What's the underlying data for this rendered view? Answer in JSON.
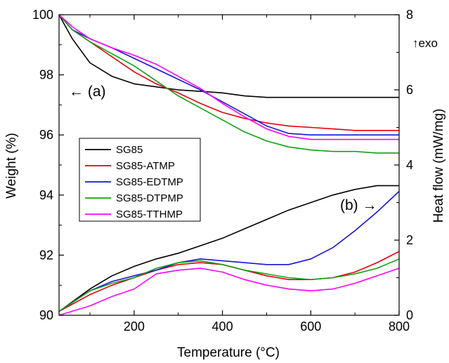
{
  "chart_data": {
    "type": "line",
    "xlabel": "Temperature (°C)",
    "ylabel_left": "Weight (%)",
    "ylabel_right": "Heat flow (mW/mg)",
    "xlim": [
      30,
      800
    ],
    "ylim_left": [
      90,
      100
    ],
    "ylim_right": [
      0,
      8
    ],
    "x_ticks": [
      200,
      400,
      600,
      800
    ],
    "y_left_ticks": [
      90,
      92,
      94,
      96,
      98,
      100
    ],
    "y_right_ticks": [
      0,
      2,
      4,
      6,
      8
    ],
    "grid": false,
    "legend_position": "left-center",
    "annotations": {
      "exo": "↑exo",
      "a": "← (a)",
      "b": "(b) →"
    },
    "colors": {
      "SG85": "#000000",
      "SG85-ATMP": "#e8000b",
      "SG85-EDTMP": "#1515d8",
      "SG85-DTPMP": "#12a012",
      "SG85-TTHMP": "#ff00ff"
    },
    "tga_series": [
      {
        "name": "SG85",
        "axis": "left",
        "x": [
          30,
          60,
          100,
          150,
          200,
          250,
          300,
          350,
          400,
          450,
          500,
          550,
          600,
          650,
          700,
          750,
          800
        ],
        "y": [
          100,
          99.2,
          98.4,
          97.95,
          97.7,
          97.6,
          97.5,
          97.45,
          97.4,
          97.3,
          97.25,
          97.25,
          97.25,
          97.25,
          97.25,
          97.25,
          97.25
        ]
      },
      {
        "name": "SG85-ATMP",
        "axis": "left",
        "x": [
          30,
          60,
          100,
          150,
          200,
          250,
          300,
          350,
          400,
          450,
          500,
          550,
          600,
          650,
          700,
          750,
          800
        ],
        "y": [
          100,
          99.5,
          99.1,
          98.6,
          98.1,
          97.7,
          97.4,
          97.05,
          96.75,
          96.55,
          96.4,
          96.3,
          96.25,
          96.2,
          96.15,
          96.15,
          96.15
        ]
      },
      {
        "name": "SG85-EDTMP",
        "axis": "left",
        "x": [
          30,
          60,
          100,
          150,
          200,
          250,
          300,
          350,
          400,
          450,
          500,
          550,
          600,
          650,
          700,
          750,
          800
        ],
        "y": [
          100,
          99.5,
          99.2,
          98.9,
          98.55,
          98.2,
          97.85,
          97.5,
          97.1,
          96.7,
          96.3,
          96.05,
          96.0,
          96.0,
          96.0,
          96.0,
          96.0
        ]
      },
      {
        "name": "SG85-DTPMP",
        "axis": "left",
        "x": [
          30,
          60,
          100,
          150,
          200,
          250,
          300,
          350,
          400,
          450,
          500,
          550,
          600,
          650,
          700,
          750,
          800
        ],
        "y": [
          100,
          99.5,
          99.1,
          98.7,
          98.3,
          97.8,
          97.3,
          96.9,
          96.5,
          96.1,
          95.8,
          95.6,
          95.5,
          95.45,
          95.45,
          95.4,
          95.4
        ]
      },
      {
        "name": "SG85-TTHMP",
        "axis": "left",
        "x": [
          30,
          60,
          100,
          150,
          200,
          250,
          300,
          350,
          400,
          450,
          500,
          550,
          600,
          650,
          700,
          750,
          800
        ],
        "y": [
          100,
          99.6,
          99.2,
          98.9,
          98.65,
          98.35,
          97.95,
          97.55,
          97.05,
          96.6,
          96.2,
          95.95,
          95.85,
          95.85,
          95.85,
          95.85,
          95.85
        ]
      }
    ],
    "dsc_series": [
      {
        "name": "SG85",
        "axis": "right",
        "x": [
          30,
          100,
          150,
          200,
          250,
          300,
          350,
          400,
          450,
          500,
          550,
          600,
          650,
          700,
          750,
          800
        ],
        "y": [
          0.1,
          0.7,
          1.05,
          1.3,
          1.5,
          1.65,
          1.85,
          2.05,
          2.3,
          2.55,
          2.8,
          3.0,
          3.2,
          3.35,
          3.45,
          3.45
        ]
      },
      {
        "name": "SG85-ATMP",
        "axis": "right",
        "x": [
          30,
          100,
          150,
          200,
          250,
          300,
          350,
          400,
          450,
          500,
          550,
          600,
          650,
          700,
          750,
          800
        ],
        "y": [
          0.1,
          0.55,
          0.8,
          1.0,
          1.2,
          1.35,
          1.4,
          1.35,
          1.2,
          1.05,
          0.95,
          0.95,
          1.0,
          1.15,
          1.4,
          1.7
        ]
      },
      {
        "name": "SG85-EDTMP",
        "axis": "right",
        "x": [
          30,
          100,
          150,
          200,
          250,
          300,
          350,
          400,
          450,
          500,
          550,
          600,
          650,
          700,
          750,
          800
        ],
        "y": [
          0.1,
          0.65,
          0.9,
          1.05,
          1.2,
          1.4,
          1.5,
          1.45,
          1.4,
          1.35,
          1.35,
          1.5,
          1.8,
          2.25,
          2.75,
          3.3
        ]
      },
      {
        "name": "SG85-DTPMP",
        "axis": "right",
        "x": [
          30,
          100,
          150,
          200,
          250,
          300,
          350,
          400,
          450,
          500,
          550,
          600,
          650,
          700,
          750,
          800
        ],
        "y": [
          0.1,
          0.65,
          0.85,
          1.0,
          1.25,
          1.4,
          1.45,
          1.35,
          1.2,
          1.1,
          1.0,
          0.95,
          1.0,
          1.1,
          1.25,
          1.5
        ]
      },
      {
        "name": "SG85-TTHMP",
        "axis": "right",
        "x": [
          30,
          100,
          150,
          200,
          250,
          300,
          350,
          400,
          450,
          500,
          550,
          600,
          650,
          700,
          750,
          800
        ],
        "y": [
          0.0,
          0.25,
          0.5,
          0.7,
          1.1,
          1.2,
          1.25,
          1.15,
          0.95,
          0.8,
          0.7,
          0.65,
          0.7,
          0.85,
          1.05,
          1.25
        ]
      }
    ]
  }
}
